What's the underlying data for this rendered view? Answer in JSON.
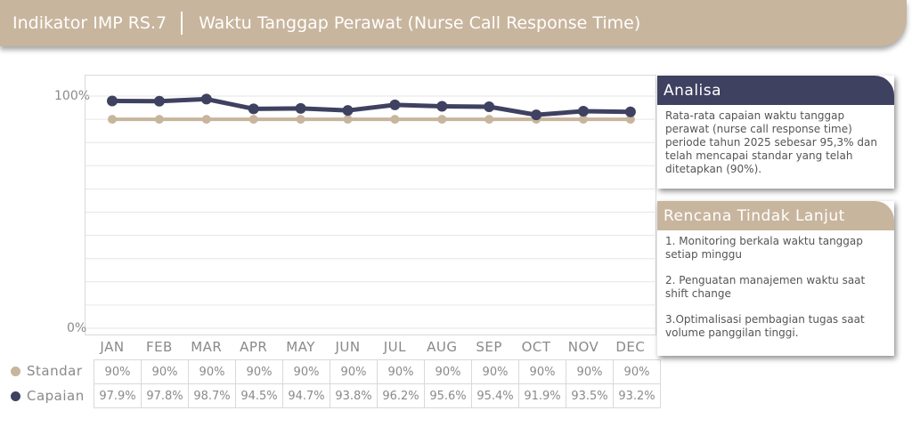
{
  "header": {
    "indicator": "Indikator IMP RS.7",
    "title": "Waktu Tanggap Perawat (Nurse Call Response Time)"
  },
  "colors": {
    "standar": "#c8b59d",
    "capaian": "#3f4160",
    "header": "#c8b59d"
  },
  "chart_data": {
    "type": "line",
    "categories": [
      "JAN",
      "FEB",
      "MAR",
      "APR",
      "MAY",
      "JUN",
      "JUL",
      "AUG",
      "SEP",
      "OCT",
      "NOV",
      "DEC"
    ],
    "series": [
      {
        "name": "Standar",
        "values": [
          90,
          90,
          90,
          90,
          90,
          90,
          90,
          90,
          90,
          90,
          90,
          90
        ],
        "labels": [
          "90%",
          "90%",
          "90%",
          "90%",
          "90%",
          "90%",
          "90%",
          "90%",
          "90%",
          "90%",
          "90%",
          "90%"
        ]
      },
      {
        "name": "Capaian",
        "values": [
          97.9,
          97.8,
          98.7,
          94.5,
          94.7,
          93.8,
          96.2,
          95.6,
          95.4,
          91.9,
          93.5,
          93.2
        ],
        "labels": [
          "97.9%",
          "97.8%",
          "98.7%",
          "94.5%",
          "94.7%",
          "93.8%",
          "96.2%",
          "95.6%",
          "95.4%",
          "91.9%",
          "93.5%",
          "93.2%"
        ]
      }
    ],
    "ytick_labels": [
      "100%",
      "0%"
    ],
    "ylim": [
      0,
      100
    ],
    "grid": true
  },
  "analisa": {
    "title": "Analisa",
    "text": "Rata-rata capaian waktu tanggap perawat (nurse call response time) periode tahun 2025  sebesar 95,3% dan telah mencapai standar yang telah ditetapkan (90%)."
  },
  "rtl": {
    "title": "Rencana Tindak Lanjut",
    "items": [
      "1. Monitoring berkala waktu tanggap setiap minggu",
      "2. Penguatan manajemen waktu saat shift change",
      "3.Optimalisasi pembagian tugas saat volume panggilan tinggi."
    ]
  }
}
